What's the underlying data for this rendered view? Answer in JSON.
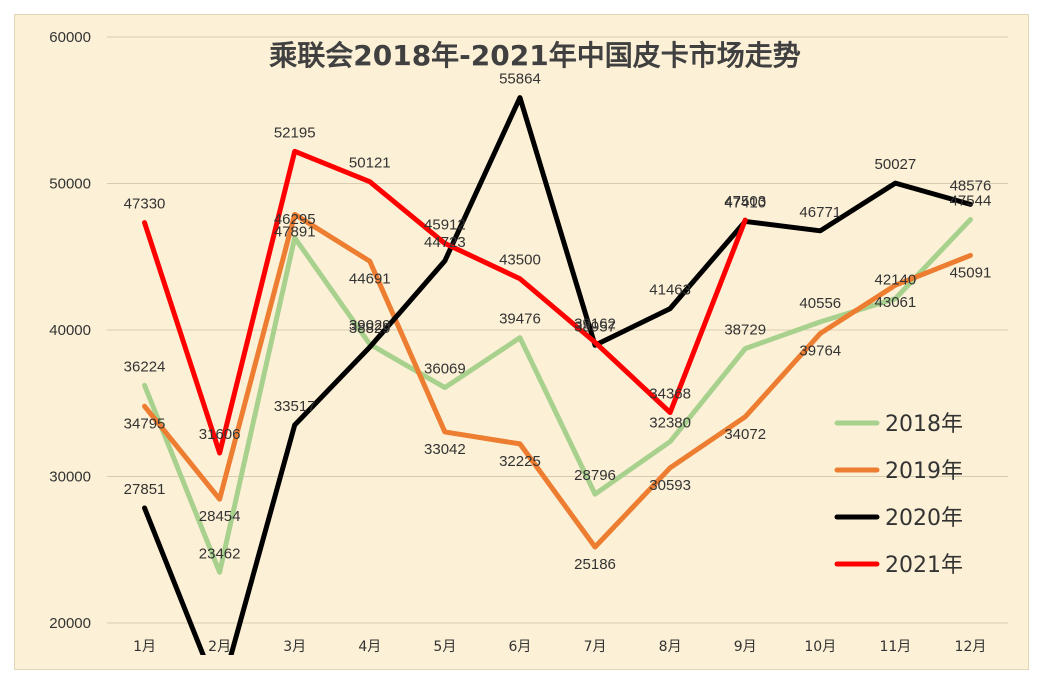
{
  "chart_data": {
    "type": "line",
    "title": "乘联会2018年-2021年中国皮卡市场走势",
    "categories": [
      "1月",
      "2月",
      "3月",
      "4月",
      "5月",
      "6月",
      "7月",
      "8月",
      "9月",
      "10月",
      "11月",
      "12月"
    ],
    "ylim": [
      20000,
      60000
    ],
    "yticks": [
      "20000",
      "30000",
      "40000",
      "50000",
      "60000"
    ],
    "grid": "horizontal",
    "legend_position": "bottom-right",
    "series": [
      {
        "name": "2018年",
        "color": "#a9d18e",
        "values": [
          36224,
          23462,
          46295,
          39029,
          36069,
          39476,
          28796,
          32380,
          38729,
          40556,
          42140,
          47544
        ]
      },
      {
        "name": "2019年",
        "color": "#ed7d31",
        "values": [
          34795,
          28454,
          47891,
          44691,
          33042,
          32225,
          25186,
          30593,
          34072,
          39764,
          43061,
          45091
        ]
      },
      {
        "name": "2020年",
        "color": "#000000",
        "values": [
          27851,
          15000,
          33517,
          38829,
          44723,
          55864,
          38957,
          41463,
          47410,
          46771,
          50027,
          48576
        ]
      },
      {
        "name": "2021年",
        "color": "#ff0000",
        "values": [
          47330,
          31606,
          52195,
          50121,
          45912,
          43500,
          39162,
          34368,
          47503,
          null,
          null,
          null
        ]
      }
    ]
  }
}
